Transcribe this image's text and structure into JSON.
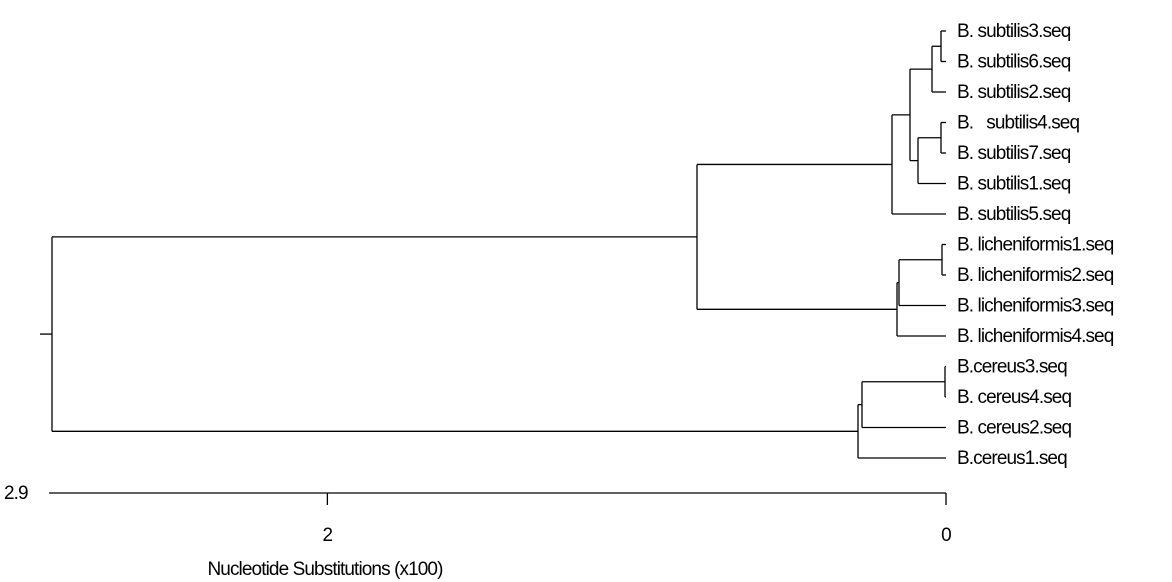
{
  "leaves": [
    {
      "id": "bs3",
      "label": "B. subtilis3.seq"
    },
    {
      "id": "bs6",
      "label": "B. subtilis6.seq"
    },
    {
      "id": "bs2",
      "label": "B. subtilis2.seq"
    },
    {
      "id": "bs4",
      "label": "B.   subtilis4.seq"
    },
    {
      "id": "bs7",
      "label": "B. subtilis7.seq"
    },
    {
      "id": "bs1",
      "label": "B. subtilis1.seq"
    },
    {
      "id": "bs5",
      "label": "B. subtilis5.seq"
    },
    {
      "id": "bl1",
      "label": "B. licheniformis1.seq"
    },
    {
      "id": "bl2",
      "label": "B. licheniformis2.seq"
    },
    {
      "id": "bl3",
      "label": "B. licheniformis3.seq"
    },
    {
      "id": "bl4",
      "label": "B. licheniformis4.seq"
    },
    {
      "id": "bc3",
      "label": "B.cereus3.seq"
    },
    {
      "id": "bc4",
      "label": "B. cereus4.seq"
    },
    {
      "id": "bc2",
      "label": "B. cereus2.seq"
    },
    {
      "id": "bc1",
      "label": "B.cereus1.seq"
    }
  ],
  "axis": {
    "title": "Nucleotide Substitutions (x100)",
    "end_label": "2.9",
    "ticks": [
      {
        "value": 2,
        "label": "2"
      },
      {
        "value": 0,
        "label": "0"
      }
    ],
    "range": [
      0,
      2.9
    ]
  }
}
